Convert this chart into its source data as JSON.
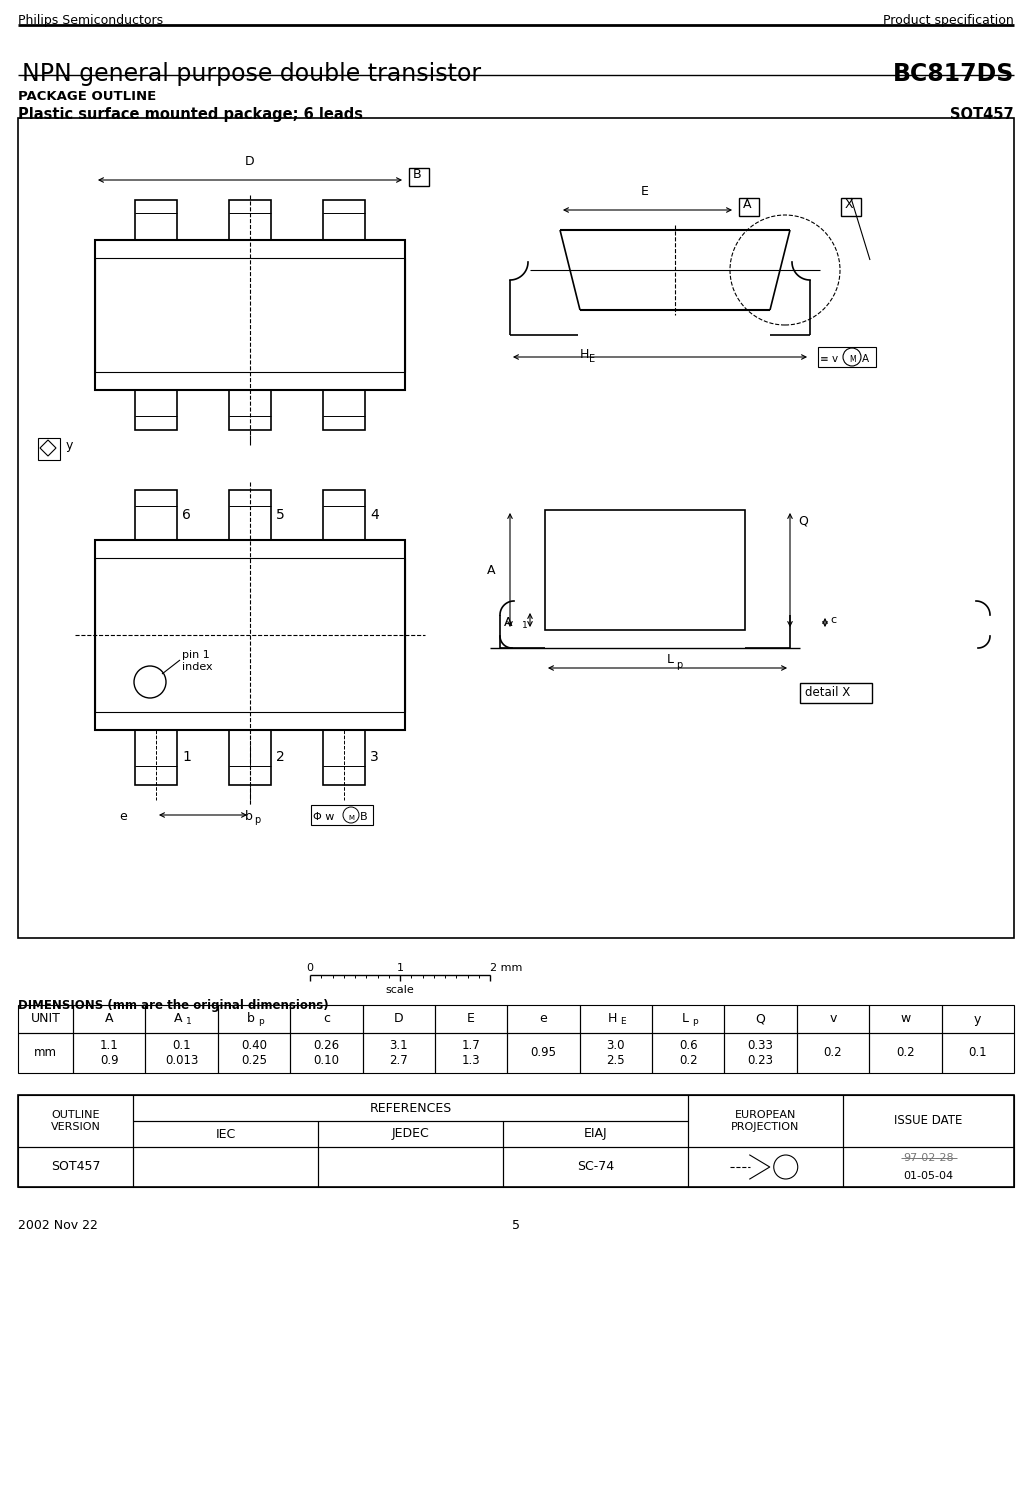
{
  "header_left": "Philips Semiconductors",
  "header_right": "Product specification",
  "title_left": "NPN general purpose double transistor",
  "title_right": "BC817DS",
  "section_title": "PACKAGE OUTLINE",
  "package_desc_left": "Plastic surface mounted package; 6 leads",
  "package_desc_right": "SOT457",
  "footer_left": "2002 Nov 22",
  "footer_center": "5",
  "dim_table_headers": [
    "UNIT",
    "A",
    "A1",
    "bp",
    "c",
    "D",
    "E",
    "e",
    "HE",
    "Lp",
    "Q",
    "v",
    "w",
    "y"
  ],
  "dim_table_row1": [
    "mm",
    "1.1\n0.9",
    "0.1\n0.013",
    "0.40\n0.25",
    "0.26\n0.10",
    "3.1\n2.7",
    "1.7\n1.3",
    "0.95",
    "3.0\n2.5",
    "0.6\n0.2",
    "0.33\n0.23",
    "0.2",
    "0.2",
    "0.1"
  ],
  "ref_table_outline": "SOT457",
  "ref_table_eiaj": "SC-74",
  "bg_color": "#ffffff"
}
